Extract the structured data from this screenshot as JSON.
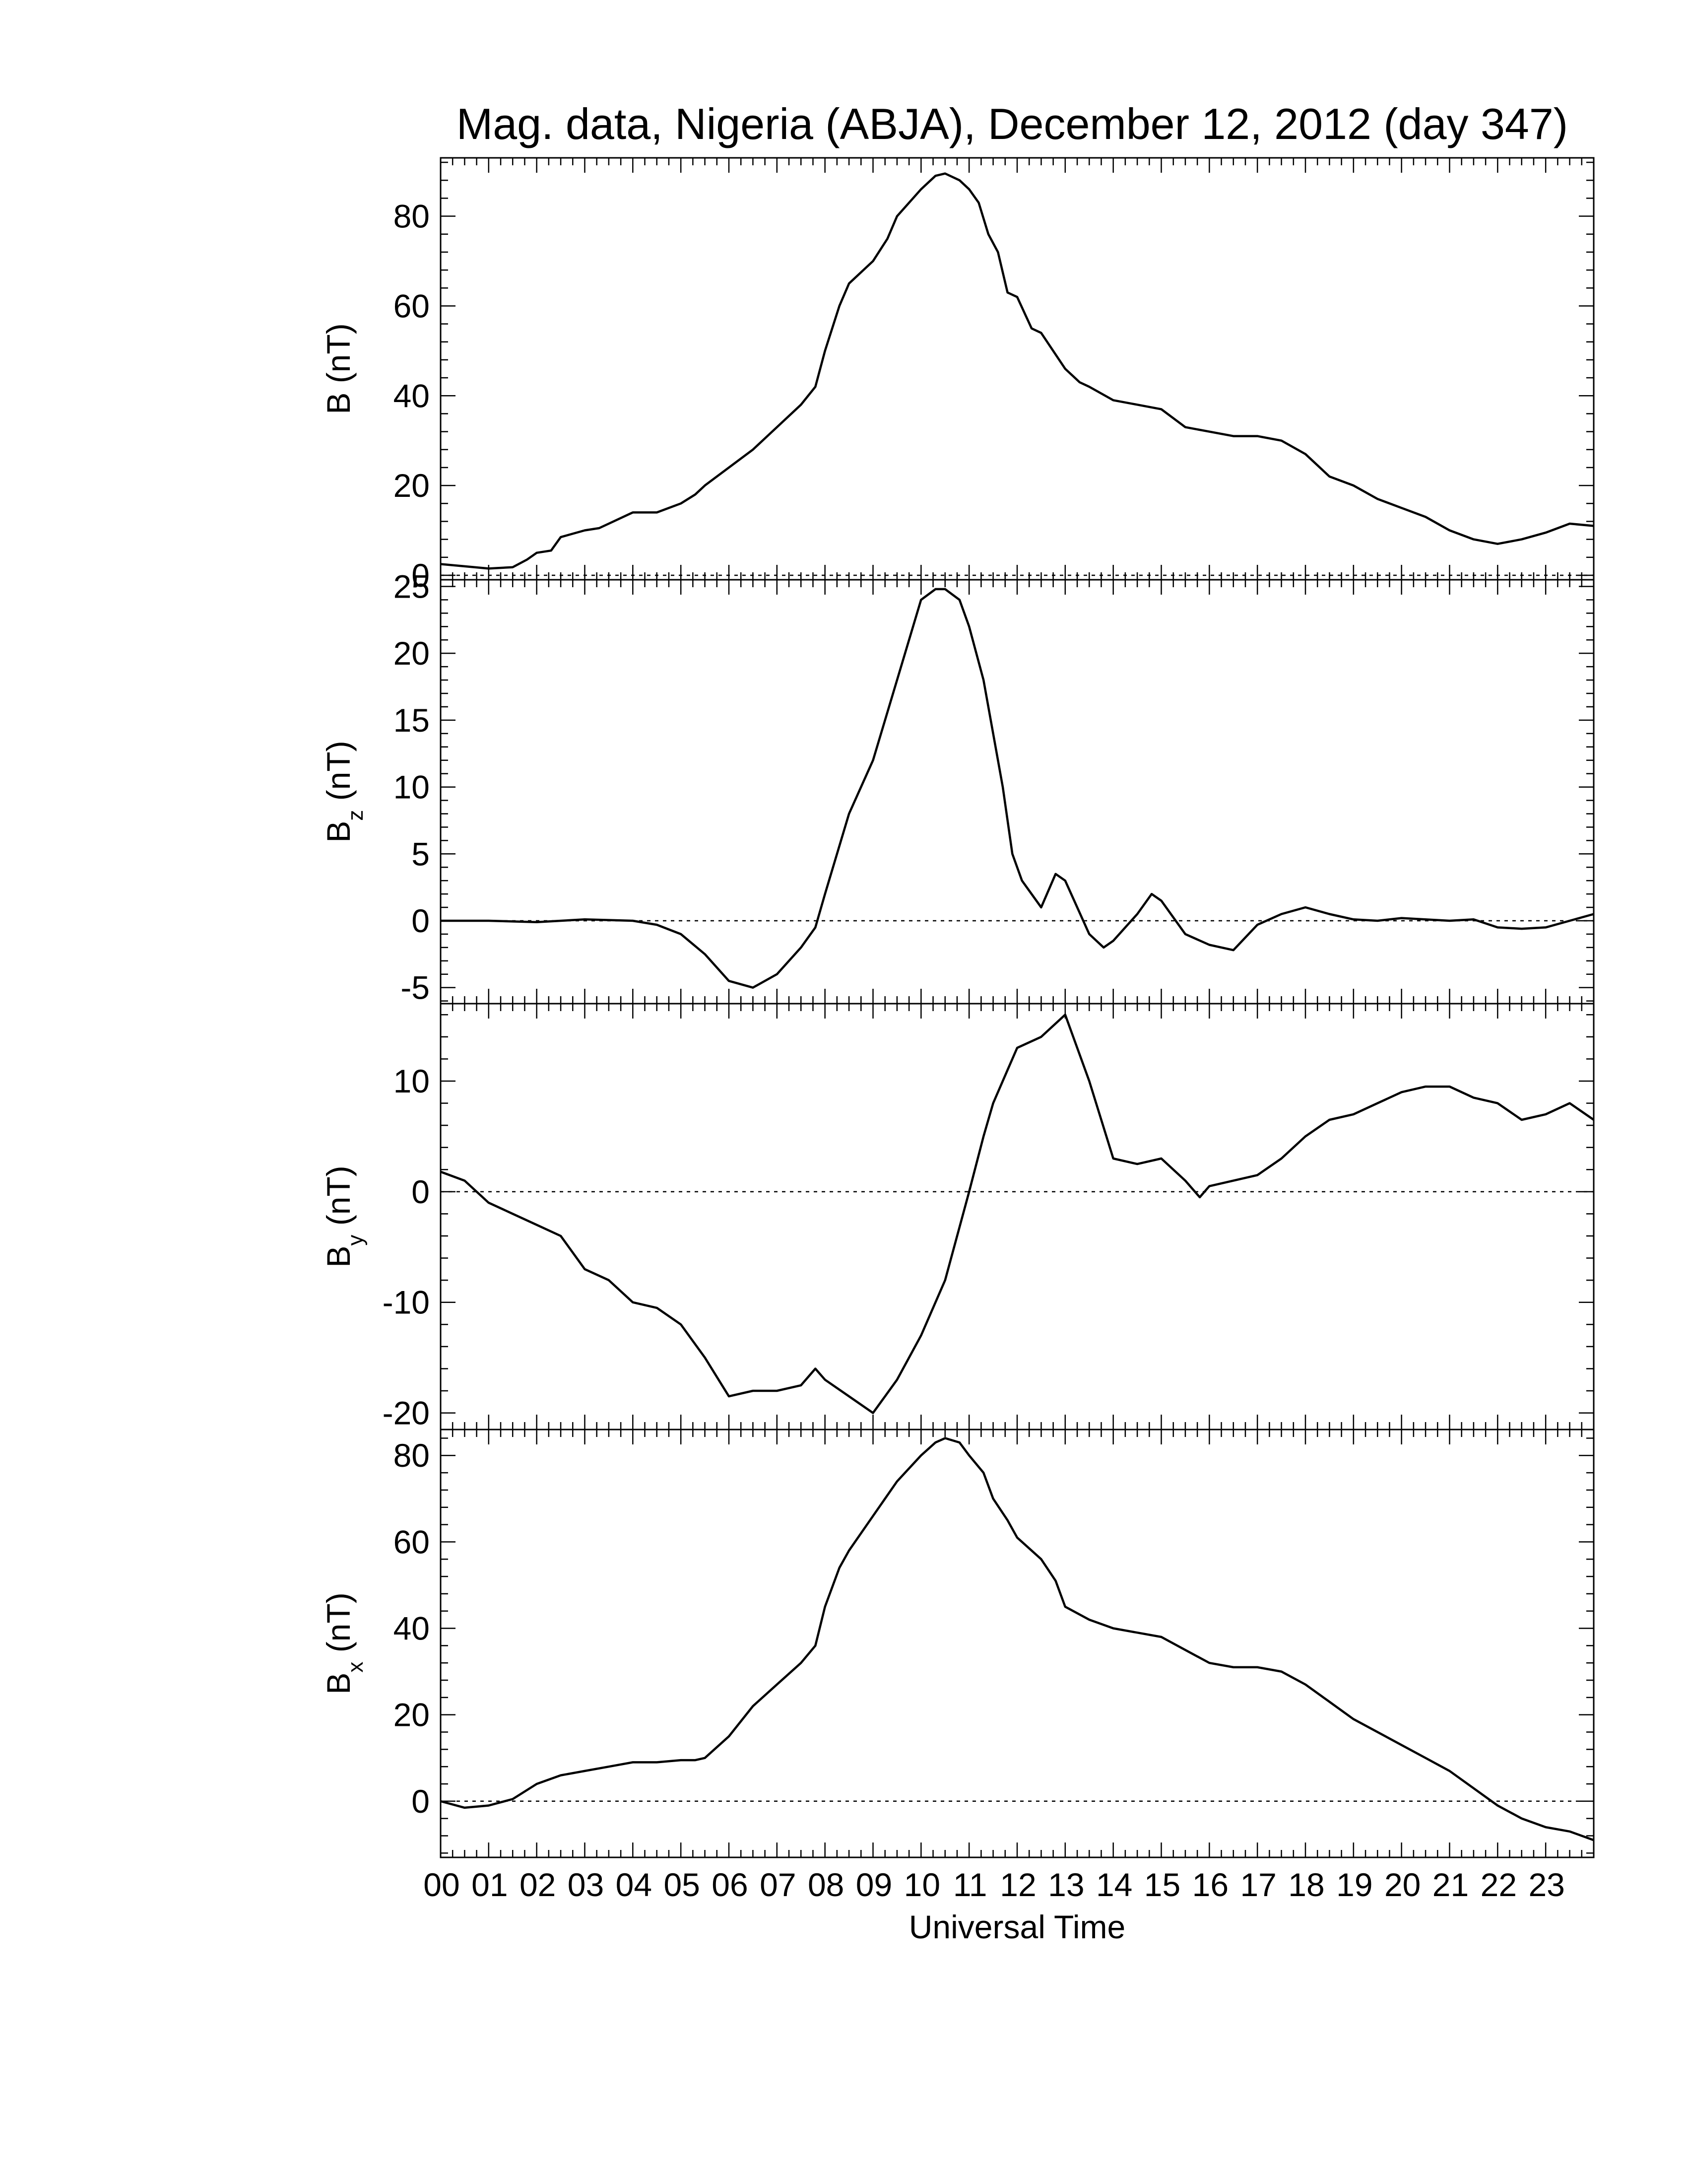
{
  "chart_data": {
    "title": "Mag. data, Nigeria (ABJA), December 12, 2012 (day 347)",
    "xlabel": "Universal Time",
    "xlim": [
      0,
      24
    ],
    "xtick_labels": [
      "00",
      "01",
      "02",
      "03",
      "04",
      "05",
      "06",
      "07",
      "08",
      "09",
      "10",
      "11",
      "12",
      "13",
      "14",
      "15",
      "16",
      "17",
      "18",
      "19",
      "20",
      "21",
      "22",
      "23"
    ],
    "grid": false,
    "panels": [
      {
        "type": "line",
        "ylabel": "B (nT)",
        "ylabel_main": "B",
        "ylabel_sub": "",
        "ylabel_unit": "(nT)",
        "ylim": [
          -1,
          93
        ],
        "yticks": [
          0,
          20,
          40,
          60,
          80
        ],
        "ytick_labels": [
          "0",
          "20",
          "40",
          "60",
          "80"
        ],
        "zero_line": true,
        "x": [
          0,
          0.5,
          1.0,
          1.5,
          1.8,
          2.0,
          2.3,
          2.5,
          3.0,
          3.3,
          3.5,
          4.0,
          4.5,
          5.0,
          5.3,
          5.5,
          6.0,
          6.5,
          7.0,
          7.5,
          7.8,
          8.0,
          8.3,
          8.5,
          9.0,
          9.3,
          9.5,
          10.0,
          10.3,
          10.5,
          10.8,
          11.0,
          11.2,
          11.4,
          11.6,
          11.8,
          12.0,
          12.3,
          12.5,
          13.0,
          13.3,
          13.5,
          14.0,
          14.5,
          15.0,
          15.5,
          16.0,
          16.5,
          17.0,
          17.5,
          18.0,
          18.5,
          19.0,
          19.5,
          20.0,
          20.5,
          21.0,
          21.5,
          22.0,
          22.5,
          23.0,
          23.5,
          24.0
        ],
        "values": [
          2.5,
          2.0,
          1.5,
          1.8,
          3.5,
          5.0,
          5.5,
          8.5,
          10.0,
          10.5,
          11.5,
          14.0,
          14.0,
          16.0,
          18.0,
          20.0,
          24.0,
          28.0,
          33.0,
          38.0,
          42.0,
          50.0,
          60.0,
          65.0,
          70.0,
          75.0,
          80.0,
          86.0,
          89.0,
          89.5,
          88.0,
          86.0,
          83.0,
          76.0,
          72.0,
          63.0,
          62.0,
          55.0,
          54.0,
          46.0,
          43.0,
          42.0,
          39.0,
          38.0,
          37.0,
          33.0,
          32.0,
          31.0,
          31.0,
          30.0,
          27.0,
          22.0,
          20.0,
          17.0,
          15.0,
          13.0,
          10.0,
          8.0,
          7.0,
          8.0,
          9.5,
          11.5,
          11.0
        ]
      },
      {
        "type": "line",
        "ylabel": "Bz (nT)",
        "ylabel_main": "B",
        "ylabel_sub": "z",
        "ylabel_unit": "(nT)",
        "ylim": [
          -6.2,
          25.5
        ],
        "yticks": [
          -5,
          0,
          5,
          10,
          15,
          20,
          25
        ],
        "ytick_labels": [
          "-5",
          "0",
          "5",
          "10",
          "15",
          "20",
          "25"
        ],
        "zero_line": true,
        "x": [
          0,
          1.0,
          2.0,
          3.0,
          4.0,
          4.5,
          5.0,
          5.5,
          6.0,
          6.5,
          7.0,
          7.5,
          7.8,
          8.0,
          8.5,
          9.0,
          9.5,
          10.0,
          10.3,
          10.5,
          10.8,
          11.0,
          11.3,
          11.5,
          11.7,
          11.9,
          12.1,
          12.5,
          12.8,
          13.0,
          13.5,
          13.8,
          14.0,
          14.5,
          14.8,
          15.0,
          15.5,
          16.0,
          16.5,
          17.0,
          17.5,
          18.0,
          18.5,
          19.0,
          19.5,
          20.0,
          21.0,
          21.5,
          22.0,
          22.5,
          23.0,
          23.5,
          24.0
        ],
        "values": [
          0.0,
          0.0,
          -0.1,
          0.1,
          0.0,
          -0.3,
          -1.0,
          -2.5,
          -4.5,
          -5.0,
          -4.0,
          -2.0,
          -0.5,
          2.0,
          8.0,
          12.0,
          18.0,
          24.0,
          24.8,
          24.8,
          24.0,
          22.0,
          18.0,
          14.0,
          10.0,
          5.0,
          3.0,
          1.0,
          3.5,
          3.0,
          -1.0,
          -2.0,
          -1.5,
          0.5,
          2.0,
          1.5,
          -1.0,
          -1.8,
          -2.2,
          -0.3,
          0.5,
          1.0,
          0.5,
          0.1,
          0.0,
          0.2,
          0.0,
          0.1,
          -0.5,
          -0.6,
          -0.5,
          0.0,
          0.5
        ]
      },
      {
        "type": "line",
        "ylabel": "By (nT)",
        "ylabel_main": "B",
        "ylabel_sub": "y",
        "ylabel_unit": "(nT)",
        "ylim": [
          -21.5,
          17
        ],
        "yticks": [
          -20,
          -10,
          0,
          10
        ],
        "ytick_labels": [
          "-20",
          "-10",
          "0",
          "10"
        ],
        "zero_line": true,
        "x": [
          0,
          0.5,
          1.0,
          1.5,
          2.0,
          2.5,
          3.0,
          3.5,
          4.0,
          4.5,
          5.0,
          5.5,
          6.0,
          6.5,
          7.0,
          7.5,
          7.8,
          8.0,
          8.5,
          9.0,
          9.5,
          10.0,
          10.5,
          11.0,
          11.3,
          11.5,
          11.8,
          12.0,
          12.5,
          13.0,
          13.5,
          14.0,
          14.5,
          15.0,
          15.5,
          15.8,
          16.0,
          16.5,
          17.0,
          17.5,
          18.0,
          18.5,
          19.0,
          19.5,
          20.0,
          20.5,
          21.0,
          21.5,
          22.0,
          22.5,
          23.0,
          23.5,
          24.0
        ],
        "values": [
          1.8,
          1.0,
          -1.0,
          -2.0,
          -3.0,
          -4.0,
          -7.0,
          -8.0,
          -10.0,
          -10.5,
          -12.0,
          -15.0,
          -18.5,
          -18.0,
          -18.0,
          -17.5,
          -16.0,
          -17.0,
          -18.5,
          -20.0,
          -17.0,
          -13.0,
          -8.0,
          0.0,
          5.0,
          8.0,
          11.0,
          13.0,
          14.0,
          16.0,
          10.0,
          3.0,
          2.5,
          3.0,
          1.0,
          -0.5,
          0.5,
          1.0,
          1.5,
          3.0,
          5.0,
          6.5,
          7.0,
          8.0,
          9.0,
          9.5,
          9.5,
          8.5,
          8.0,
          6.5,
          7.0,
          8.0,
          6.5
        ]
      },
      {
        "type": "line",
        "ylabel": "Bx (nT)",
        "ylabel_main": "B",
        "ylabel_sub": "x",
        "ylabel_unit": "(nT)",
        "ylim": [
          -13,
          86
        ],
        "yticks": [
          0,
          20,
          40,
          60,
          80
        ],
        "ytick_labels": [
          "0",
          "20",
          "40",
          "60",
          "80"
        ],
        "zero_line": true,
        "x": [
          0,
          0.5,
          1.0,
          1.5,
          2.0,
          2.5,
          3.0,
          3.5,
          4.0,
          4.5,
          5.0,
          5.3,
          5.5,
          6.0,
          6.5,
          7.0,
          7.5,
          7.8,
          8.0,
          8.3,
          8.5,
          9.0,
          9.5,
          10.0,
          10.3,
          10.5,
          10.8,
          11.0,
          11.3,
          11.5,
          11.8,
          12.0,
          12.5,
          12.8,
          13.0,
          13.5,
          14.0,
          14.5,
          15.0,
          15.5,
          16.0,
          16.5,
          17.0,
          17.5,
          18.0,
          18.5,
          19.0,
          19.5,
          20.0,
          20.5,
          21.0,
          21.5,
          22.0,
          22.5,
          23.0,
          23.5,
          24.0
        ],
        "values": [
          0.0,
          -1.5,
          -1.0,
          0.5,
          4.0,
          6.0,
          7.0,
          8.0,
          9.0,
          9.0,
          9.5,
          9.5,
          10.0,
          15.0,
          22.0,
          27.0,
          32.0,
          36.0,
          45.0,
          54.0,
          58.0,
          66.0,
          74.0,
          80.0,
          83.0,
          84.0,
          83.0,
          80.0,
          76.0,
          70.0,
          65.0,
          61.0,
          56.0,
          51.0,
          45.0,
          42.0,
          40.0,
          39.0,
          38.0,
          35.0,
          32.0,
          31.0,
          31.0,
          30.0,
          27.0,
          23.0,
          19.0,
          16.0,
          13.0,
          10.0,
          7.0,
          3.0,
          -1.0,
          -4.0,
          -6.0,
          -7.0,
          -9.0
        ]
      }
    ]
  }
}
